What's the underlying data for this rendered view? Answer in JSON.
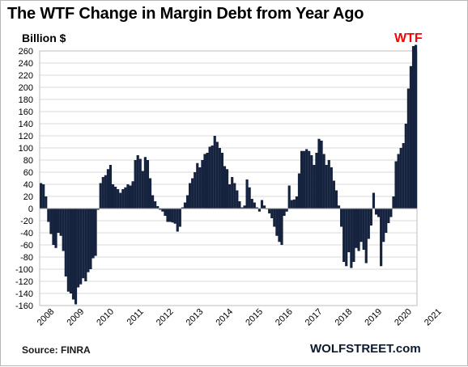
{
  "title": "The WTF Change in Margin Debt from Year Ago",
  "units_label": "Billion $",
  "annotation": "WTF",
  "source": "Source: FINRA",
  "brand": "WOLFSTREET.com",
  "colors": {
    "bar": "#16233f",
    "highlight": "#ff0000",
    "grid": "#d9d9d9",
    "background": "#ffffff"
  },
  "chart_data": {
    "type": "bar",
    "title": "The WTF Change in Margin Debt from Year Ago",
    "ylabel": "Billion $",
    "xlabel": "",
    "ylim": [
      -160,
      270
    ],
    "yticks": [
      260,
      240,
      220,
      200,
      180,
      160,
      140,
      120,
      100,
      80,
      60,
      40,
      20,
      0,
      -20,
      -40,
      -60,
      -80,
      -100,
      -120,
      -140,
      -160
    ],
    "x_ticks": [
      "2008",
      "2009",
      "2010",
      "2011",
      "2012",
      "2013",
      "2014",
      "2015",
      "2016",
      "2017",
      "2018",
      "2019",
      "2020",
      "2021"
    ],
    "grid": true,
    "frequency": "monthly",
    "start": "2008-01",
    "series": [
      {
        "values": [
          42,
          40,
          20,
          -22,
          -42,
          -60,
          -65,
          -40,
          -45,
          -70,
          -112,
          -137,
          -140,
          -150,
          -158,
          -130,
          -125,
          -115,
          -120,
          -105,
          -100,
          -82,
          -78,
          -2,
          42,
          52,
          55,
          65,
          72,
          40,
          36,
          32,
          26,
          32,
          35,
          40,
          38,
          45,
          80,
          88,
          82,
          62,
          85,
          80,
          50,
          22,
          12,
          4,
          -2,
          -5,
          -12,
          -22,
          -22,
          -23,
          -25,
          -38,
          -30,
          2,
          10,
          22,
          42,
          50,
          60,
          75,
          68,
          80,
          90,
          92,
          102,
          104,
          120,
          110,
          100,
          92,
          70,
          65,
          40,
          52,
          42,
          30,
          12,
          2,
          5,
          48,
          35,
          16,
          10,
          2,
          -5,
          14,
          5,
          -1,
          -8,
          -16,
          -30,
          -45,
          -55,
          -60,
          -12,
          -5,
          38,
          14,
          15,
          20,
          58,
          95,
          95,
          98,
          95,
          88,
          72,
          92,
          115,
          112,
          90,
          72,
          80,
          68,
          46,
          30,
          5,
          -30,
          -88,
          -95,
          -72,
          -98,
          -88,
          -65,
          -70,
          -55,
          -68,
          -90,
          -50,
          -28,
          26,
          -10,
          -14,
          -95,
          -55,
          -40,
          -24,
          -14,
          20,
          78,
          90,
          100,
          108,
          140,
          198,
          235,
          268,
          270
        ],
        "highlight_from": "2020-12"
      }
    ]
  }
}
